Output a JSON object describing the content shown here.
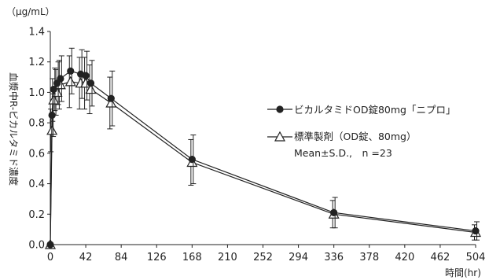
{
  "chart_data": {
    "type": "line",
    "title": "",
    "xlabel": "時間(hr)",
    "ylabel": "血漿中R-ビカルタミド濃度",
    "yunit": "（µg/mL）",
    "xlim": [
      0,
      504
    ],
    "ylim": [
      0,
      1.4
    ],
    "xticks": [
      0,
      42,
      84,
      126,
      168,
      210,
      252,
      294,
      336,
      378,
      420,
      462,
      504
    ],
    "yticks": [
      "0.0",
      "0.2",
      "0.4",
      "0.6",
      "0.8",
      "1.0",
      "1.2",
      "1.4"
    ],
    "grid": false,
    "legend_position": "right-middle",
    "series": [
      {
        "name": "ビカルタミドOD錠80mg「ニプロ」",
        "marker": "circle-filled",
        "x": [
          0,
          2,
          4,
          8,
          12,
          24,
          36,
          42,
          48,
          72,
          168,
          336,
          504
        ],
        "y": [
          0.0,
          0.85,
          1.02,
          1.06,
          1.09,
          1.14,
          1.12,
          1.11,
          1.06,
          0.96,
          0.56,
          0.21,
          0.09
        ],
        "err": [
          0,
          0.14,
          0.14,
          0.14,
          0.15,
          0.15,
          0.16,
          0.16,
          0.15,
          0.18,
          0.16,
          0.1,
          0.06
        ]
      },
      {
        "name": "標準製剤（OD錠、80mg）",
        "marker": "triangle-open",
        "x": [
          0,
          2,
          4,
          8,
          12,
          24,
          36,
          42,
          48,
          72,
          168,
          336,
          504
        ],
        "y": [
          0.0,
          0.75,
          0.95,
          1.0,
          1.05,
          1.07,
          1.06,
          1.06,
          1.02,
          0.93,
          0.54,
          0.2,
          0.08
        ],
        "err": [
          0,
          0.14,
          0.14,
          0.15,
          0.16,
          0.17,
          0.17,
          0.17,
          0.16,
          0.17,
          0.15,
          0.09,
          0.05
        ]
      }
    ],
    "annotation": "Mean±S.D.,　n =23"
  }
}
